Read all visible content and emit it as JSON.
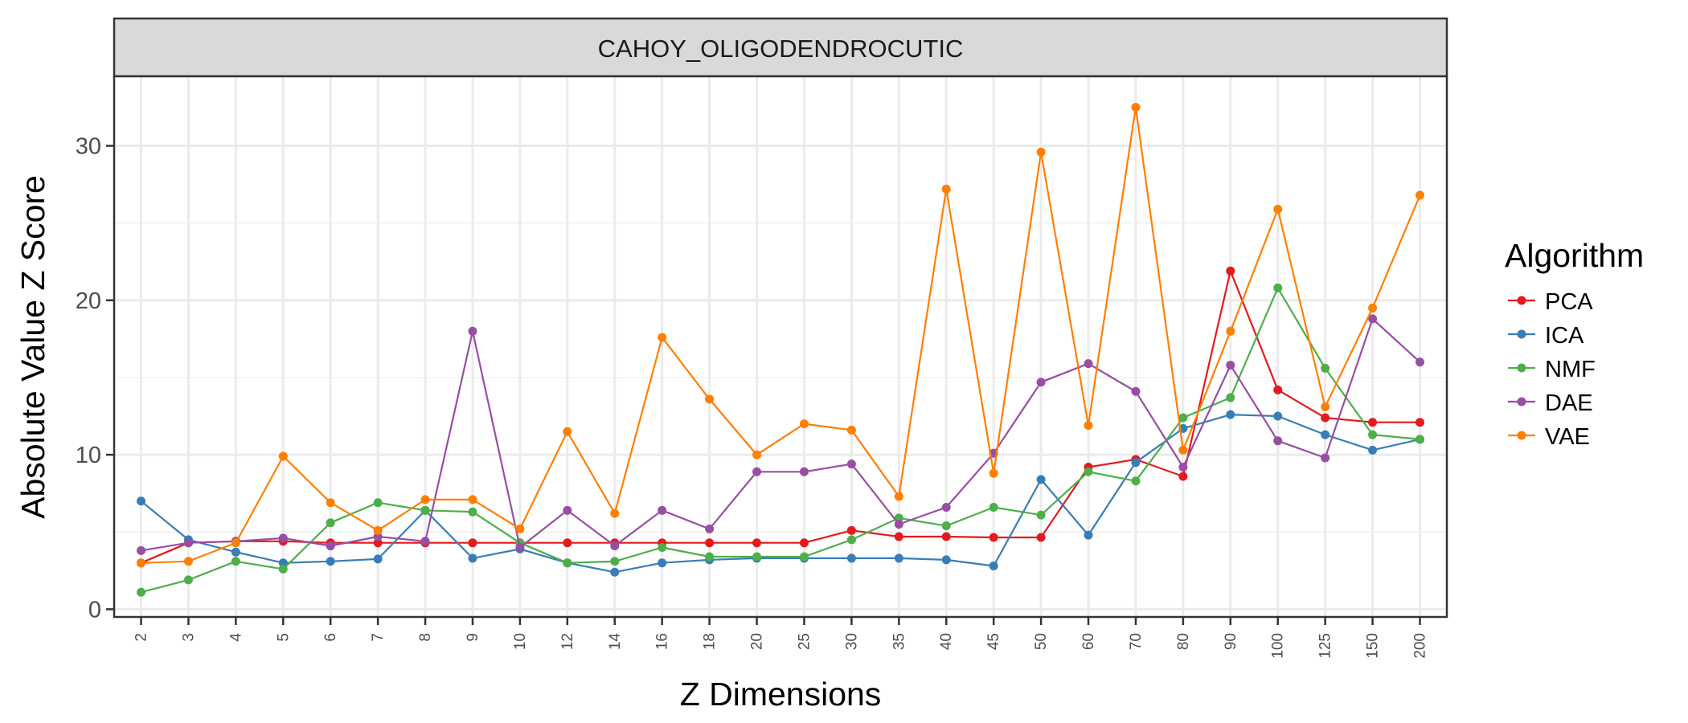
{
  "chart_data": {
    "type": "line",
    "facet_title": "CAHOY_OLIGODENDROCUTIC",
    "xlabel": "Z Dimensions",
    "ylabel": "Absolute Value Z Score",
    "categories": [
      "2",
      "3",
      "4",
      "5",
      "6",
      "7",
      "8",
      "9",
      "10",
      "12",
      "14",
      "16",
      "18",
      "20",
      "25",
      "30",
      "35",
      "40",
      "45",
      "50",
      "60",
      "70",
      "80",
      "90",
      "100",
      "125",
      "150",
      "200"
    ],
    "ylim": [
      -0.5,
      34.5
    ],
    "yticks": [
      0,
      10,
      20,
      30
    ],
    "grid": true,
    "legend": {
      "title": "Algorithm",
      "position": "right"
    },
    "series": [
      {
        "name": "PCA",
        "color": "#e41a1c",
        "values": [
          3.0,
          4.3,
          4.4,
          4.4,
          4.3,
          4.3,
          4.3,
          4.3,
          4.3,
          4.3,
          4.3,
          4.3,
          4.3,
          4.3,
          4.3,
          5.1,
          4.7,
          4.7,
          4.65,
          4.65,
          9.2,
          9.7,
          8.6,
          21.9,
          14.2,
          12.4,
          12.1,
          12.1
        ]
      },
      {
        "name": "ICA",
        "color": "#377eb8",
        "values": [
          7.0,
          4.5,
          3.7,
          3.0,
          3.1,
          3.25,
          6.4,
          3.3,
          3.9,
          3.0,
          2.4,
          3.0,
          3.2,
          3.3,
          3.3,
          3.3,
          3.3,
          3.2,
          2.8,
          8.4,
          4.8,
          9.5,
          11.7,
          12.6,
          12.5,
          11.3,
          10.3,
          11.0
        ]
      },
      {
        "name": "NMF",
        "color": "#4daf4a",
        "values": [
          1.1,
          1.9,
          3.1,
          2.6,
          5.6,
          6.9,
          6.4,
          6.3,
          4.3,
          3.0,
          3.1,
          4.0,
          3.4,
          3.4,
          3.4,
          4.5,
          5.9,
          5.4,
          6.6,
          6.1,
          8.9,
          8.3,
          12.4,
          13.7,
          20.8,
          15.6,
          11.3,
          11.0
        ]
      },
      {
        "name": "DAE",
        "color": "#984ea3",
        "values": [
          3.8,
          4.3,
          4.4,
          4.6,
          4.1,
          4.7,
          4.4,
          18.0,
          4.0,
          6.4,
          4.1,
          6.4,
          5.2,
          8.9,
          8.9,
          9.4,
          5.5,
          6.6,
          10.1,
          14.7,
          15.9,
          14.1,
          9.2,
          15.8,
          10.9,
          9.8,
          18.8,
          16.0
        ]
      },
      {
        "name": "VAE",
        "color": "#ff7f00",
        "values": [
          3.0,
          3.1,
          4.3,
          9.9,
          6.9,
          5.1,
          7.1,
          7.1,
          5.2,
          11.5,
          6.2,
          17.6,
          13.6,
          10.0,
          12.0,
          11.6,
          7.3,
          27.2,
          8.8,
          29.6,
          11.9,
          32.5,
          10.3,
          18.0,
          25.9,
          13.1,
          19.5,
          26.8
        ]
      }
    ]
  }
}
